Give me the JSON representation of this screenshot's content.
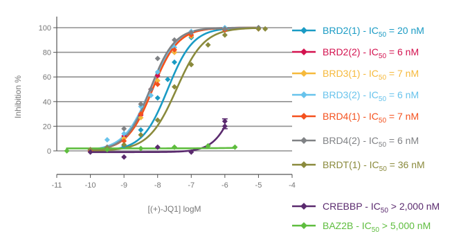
{
  "chart_data": {
    "type": "scatter",
    "title": "",
    "xlabel": "[(+)-JQ1] logM",
    "ylabel": "Inhibition %",
    "xlim": [
      -11,
      -4
    ],
    "ylim": [
      -5,
      105
    ],
    "xticks": [
      -11,
      -10,
      -9,
      -8,
      -7,
      -6,
      -5,
      -4
    ],
    "xtick_labels": [
      "-11",
      "-10",
      "-9",
      "-8",
      "-7",
      "-6",
      "-5",
      "-4"
    ],
    "yticks": [
      0,
      20,
      40,
      60,
      80,
      100
    ],
    "ytick_labels": [
      "0",
      "20",
      "40",
      "60",
      "80",
      "100"
    ],
    "grid": "horizontal",
    "legend_position": "right",
    "series": [
      {
        "name": "BRD2(1)",
        "legend_prefix": "BRD2(1) - IC",
        "legend_suffix": " = 20 nM",
        "color": "#1a9bc4",
        "fit": {
          "logIC50": -7.7,
          "hill": 1.15,
          "bottom": 0,
          "top": 100
        },
        "x": [
          -10.0,
          -9.5,
          -9.0,
          -8.5,
          -8.0,
          -7.7,
          -7.5,
          -7.0,
          -6.0,
          -5.0
        ],
        "y": [
          0,
          2,
          4,
          17,
          43,
          58,
          72,
          92,
          99,
          100
        ]
      },
      {
        "name": "BRD2(2)",
        "legend_prefix": "BRD2(2) - IC",
        "legend_suffix": " = 6 nM",
        "color": "#d3124f",
        "fit": {
          "logIC50": -8.22,
          "hill": 1.15,
          "bottom": 0,
          "top": 100
        },
        "x": [
          -10.0,
          -9.5,
          -9.0,
          -8.5,
          -8.2,
          -8.0,
          -7.5,
          -7.0,
          -6.0,
          -5.0
        ],
        "y": [
          0,
          2,
          12,
          29,
          50,
          61,
          80,
          94,
          99,
          100
        ]
      },
      {
        "name": "BRD3(1)",
        "legend_prefix": "BRD3(1) - IC",
        "legend_suffix": " = 7 nM",
        "color": "#f6b93b",
        "fit": {
          "logIC50": -8.15,
          "hill": 1.15,
          "bottom": 0,
          "top": 100
        },
        "x": [
          -10.0,
          -9.5,
          -9.0,
          -8.5,
          -8.0,
          -7.5,
          -7.0,
          -6.0,
          -5.0
        ],
        "y": [
          1,
          2,
          10,
          27,
          57,
          80,
          93,
          98,
          100
        ]
      },
      {
        "name": "BRD3(2)",
        "legend_prefix": "BRD3(2) - IC",
        "legend_suffix": " = 6 nM",
        "color": "#68c3ec",
        "fit": {
          "logIC50": -8.22,
          "hill": 1.1,
          "bottom": 0,
          "top": 100
        },
        "x": [
          -10.0,
          -9.5,
          -9.0,
          -8.5,
          -8.2,
          -8.0,
          -7.5,
          -7.0,
          -6.0,
          -5.0
        ],
        "y": [
          1,
          9,
          14,
          36,
          45,
          64,
          84,
          97,
          100,
          100
        ]
      },
      {
        "name": "BRD4(1)",
        "legend_prefix": "BRD4(1) - IC",
        "legend_suffix": " = 7 nM",
        "color": "#f4511e",
        "fit": {
          "logIC50": -8.15,
          "hill": 1.15,
          "bottom": 0,
          "top": 100
        },
        "x": [
          -10.0,
          -9.5,
          -9.0,
          -8.5,
          -8.0,
          -7.5,
          -7.0,
          -6.0,
          -5.0
        ],
        "y": [
          0,
          3,
          8,
          30,
          54,
          82,
          94,
          98,
          99
        ]
      },
      {
        "name": "BRD4(2)",
        "legend_prefix": "BRD4(2) - IC",
        "legend_suffix": " = 6 nM",
        "color": "#808285",
        "fit": {
          "logIC50": -8.22,
          "hill": 1.2,
          "bottom": 0,
          "top": 100
        },
        "x": [
          -10.0,
          -9.5,
          -9.0,
          -8.5,
          -8.2,
          -8.0,
          -7.5,
          -7.0,
          -6.0,
          -5.0
        ],
        "y": [
          1,
          3,
          18,
          38,
          50,
          75,
          90,
          96,
          99,
          100
        ]
      },
      {
        "name": "BRDT(1)",
        "legend_prefix": "BRDT(1) - IC",
        "legend_suffix": " = 36 nM",
        "color": "#8a8a3c",
        "fit": {
          "logIC50": -7.44,
          "hill": 1.05,
          "bottom": 0,
          "top": 100
        },
        "x": [
          -10.0,
          -9.5,
          -9.0,
          -8.5,
          -8.0,
          -7.5,
          -7.0,
          -6.5,
          -6.0,
          -5.0,
          -4.8
        ],
        "y": [
          1,
          2,
          5,
          13,
          25,
          52,
          70,
          86,
          94,
          99,
          99
        ]
      },
      {
        "name": "CREBBP",
        "legend_prefix": "CREBBP - IC",
        "legend_suffix": " > 2,000 nM",
        "color": "#5a2a6e",
        "fit": {
          "logIC50": -5.55,
          "hill": 1.3,
          "bottom": -1,
          "top": 100
        },
        "x": [
          -10.0,
          -9.0,
          -8.0,
          -7.0,
          -6.5,
          -6.0,
          -6.0
        ],
        "y": [
          -1,
          -5,
          3,
          -1,
          4,
          24,
          20
        ]
      },
      {
        "name": "BAZ2B",
        "legend_prefix": "BAZ2B - IC",
        "legend_suffix": " > 5,000 nM",
        "color": "#5ebd3e",
        "fit": {
          "logIC50": -1.0,
          "hill": 0.5,
          "bottom": 2,
          "top": 100
        },
        "x": [
          -10.7,
          -9.5,
          -8.5,
          -7.5,
          -6.5,
          -5.7
        ],
        "y": [
          0,
          1,
          2,
          3,
          4,
          3
        ]
      }
    ]
  }
}
